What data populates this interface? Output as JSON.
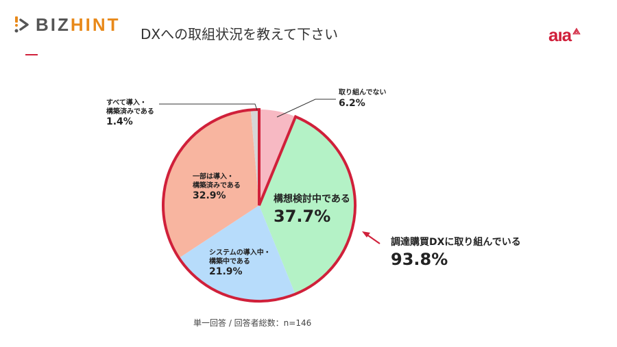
{
  "header": {
    "logo_left": {
      "part1": "BIZ",
      "part2": "HINT"
    },
    "title": "DXへの取組状況を教えて下さい",
    "logo_right": {
      "text": "aıa",
      "symbol": "⟁"
    }
  },
  "colors": {
    "accent_red": "#d0203a",
    "not_started": "#f7b9c3",
    "planning": "#b4f2c6",
    "in_progress": "#b7dcfb",
    "partial": "#f8b5a0",
    "complete": "#d6d6d6",
    "bizhint_orange": "#e8891a"
  },
  "labels": {
    "not_started": {
      "text": "取り組んでない",
      "value": "6.2%"
    },
    "planning": {
      "text": "構想検討中である",
      "value": "37.7%"
    },
    "in_progress": {
      "text1": "システムの導入中・",
      "text2": "構築中である",
      "value": "21.9%"
    },
    "partial": {
      "text1": "一部は導入・",
      "text2": "構築済みである",
      "value": "32.9%"
    },
    "complete": {
      "text1": "すべて導入・",
      "text2": "構築済みである",
      "value": "1.4%"
    }
  },
  "summary": {
    "text": "調達購買DXに取り組んでいる",
    "value": "93.8%"
  },
  "footnote": "単一回答 / 回答者総数：n=146",
  "chart_data": {
    "type": "pie",
    "title": "DXへの取組状況を教えて下さい",
    "categories": [
      "取り組んでない",
      "構想検討中である",
      "システムの導入中・構築中である",
      "一部は導入・構築済みである",
      "すべて導入・構築済みである"
    ],
    "values": [
      6.2,
      37.7,
      21.9,
      32.9,
      1.4
    ],
    "colors": [
      "#f7b9c3",
      "#b4f2c6",
      "#b7dcfb",
      "#f8b5a0",
      "#d6d6d6"
    ],
    "start_angle": "12 o'clock, clockwise",
    "highlight": {
      "group": [
        "構想検討中である",
        "システムの導入中・構築中である",
        "一部は導入・構築済みである",
        "すべて導入・構築済みである"
      ],
      "total": 93.8,
      "label": "調達購買DXに取り組んでいる",
      "outline_color": "#d0203a"
    },
    "note": "単一回答 / 回答者総数：n=146"
  }
}
